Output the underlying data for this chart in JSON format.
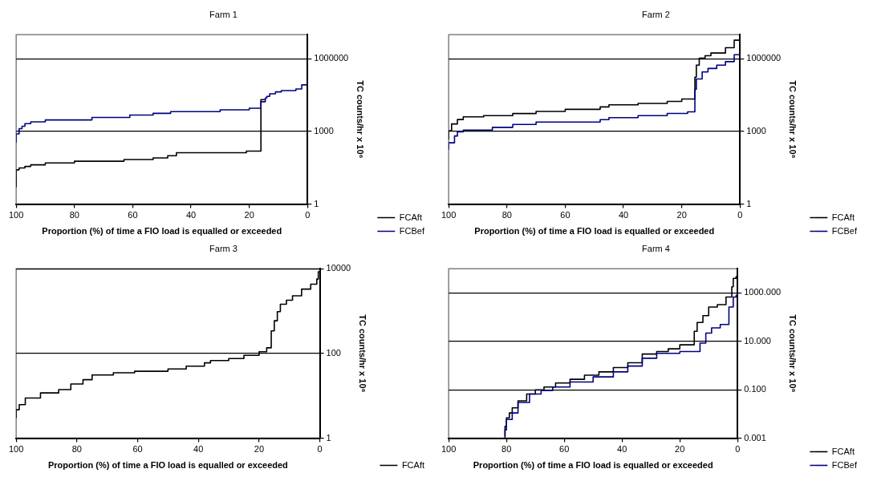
{
  "chart_data": [
    {
      "type": "step",
      "title": "Farm 1",
      "xlabel": "Proportion (%) of time a FIO load is equalled or exceeded",
      "ylabel": "TC counts/hr x 10⁶",
      "log": "y",
      "grid": "y",
      "legend": "bottom right",
      "xlim": [
        100,
        0
      ],
      "xticks": [
        100,
        80,
        60,
        40,
        20,
        0
      ],
      "ylim": [
        1,
        10000000
      ],
      "yticks": [
        1,
        1000,
        1000000
      ],
      "series": [
        {
          "name": "FCAft",
          "color": "#000000",
          "x": [
            100,
            99,
            97,
            95,
            90,
            80,
            63,
            53,
            48,
            45,
            21,
            16,
            14.5
          ],
          "values": [
            5,
            26,
            31,
            36,
            42,
            50,
            59,
            69,
            81,
            100,
            132,
            155,
            20600
          ]
        },
        {
          "name": "FCBef",
          "color": "#000080",
          "x": [
            100,
            99,
            98,
            97,
            95,
            90,
            74,
            61,
            53,
            47,
            30,
            20,
            16,
            14.5,
            14,
            13,
            11,
            9,
            4,
            2,
            0
          ],
          "values": [
            350,
            800,
            1300,
            1650,
            2100,
            2500,
            3000,
            3800,
            4800,
            5600,
            6600,
            7800,
            9100,
            17000,
            24000,
            28000,
            36000,
            43000,
            49000,
            57000,
            84000
          ]
        }
      ]
    },
    {
      "type": "step",
      "title": "Farm 2",
      "xlabel": "Proportion (%) of time a FIO load is equalled or exceeded",
      "ylabel": "TC counts/hr x 10⁶",
      "log": "y",
      "grid": "y",
      "legend": "bottom right",
      "xlim": [
        100,
        0
      ],
      "xticks": [
        100,
        80,
        60,
        40,
        20,
        0
      ],
      "ylim": [
        1,
        10000000
      ],
      "yticks": [
        1,
        1000,
        1000000
      ],
      "series": [
        {
          "name": "FCAft",
          "color": "#000000",
          "x": [
            100,
            99,
            97,
            95,
            88,
            78,
            70,
            60,
            48,
            45,
            35,
            25,
            20,
            15.5,
            15,
            14,
            12,
            10,
            5,
            2,
            0
          ],
          "values": [
            470,
            1070,
            2050,
            3100,
            4000,
            4500,
            5500,
            6700,
            8200,
            10300,
            12600,
            14400,
            17400,
            22000,
            175000,
            550000,
            1070000,
            1350000,
            1740000,
            2900000,
            5900000
          ]
        },
        {
          "name": "FCBef",
          "color": "#000080",
          "x": [
            100,
            98,
            97,
            95,
            85,
            78,
            70,
            48,
            45,
            35,
            25,
            18,
            15.5,
            15,
            13,
            11,
            8,
            5,
            2,
            0
          ],
          "values": [
            175,
            340,
            650,
            970,
            1140,
            1480,
            1940,
            2440,
            3070,
            3730,
            4530,
            5530,
            6500,
            55000,
            148000,
            288000,
            400000,
            550000,
            770000,
            1480000
          ]
        }
      ]
    },
    {
      "type": "step",
      "title": "Farm 3",
      "xlabel": "Proportion (%) of time a FIO load is equalled or exceeded",
      "ylabel": "TC counts/hr x 10⁶",
      "log": "y",
      "grid": "y",
      "legend": "bottom right",
      "xlim": [
        100,
        0
      ],
      "xticks": [
        100,
        80,
        60,
        40,
        20,
        0
      ],
      "ylim": [
        1,
        10000
      ],
      "yticks": [
        1,
        100,
        10000
      ],
      "series": [
        {
          "name": "FCAft",
          "color": "#000000",
          "x": [
            100,
            99,
            97,
            92,
            86,
            82,
            78,
            75,
            68,
            61,
            50,
            44,
            38,
            36,
            30,
            25,
            20,
            17.5,
            16,
            15,
            14,
            13,
            11,
            9,
            6,
            3,
            1,
            0.5,
            0
          ],
          "values": [
            3,
            4.7,
            6.2,
            8.9,
            11.7,
            14,
            19,
            24,
            31,
            35,
            38,
            43,
            50,
            60,
            68,
            76,
            90,
            110,
            136,
            340,
            590,
            970,
            1450,
            1800,
            2300,
            3300,
            4300,
            5700,
            8500
          ]
        }
      ]
    },
    {
      "type": "step",
      "title": "Farm 4",
      "xlabel": "Proportion (%) of time a FIO load is equalled or exceeded",
      "ylabel": "TC counts/hr x 10⁶",
      "log": "y",
      "grid": "y",
      "legend": "bottom right",
      "xlim": [
        100,
        0
      ],
      "xticks": [
        100,
        80,
        60,
        40,
        20,
        0
      ],
      "ylim": [
        0.001,
        10000
      ],
      "yticks": [
        {
          "value": 0.001,
          "label": "0.001"
        },
        {
          "value": 0.1,
          "label": "0.100"
        },
        {
          "value": 10,
          "label": "10.000"
        },
        {
          "value": 1000,
          "label": "1000.000"
        }
      ],
      "series": [
        {
          "name": "FCAft",
          "color": "#000000",
          "x": [
            80.5,
            80,
            79,
            78,
            76,
            73,
            70,
            67,
            63,
            58,
            53,
            48,
            43,
            38,
            33,
            28,
            24,
            20,
            15,
            14,
            12,
            10,
            7,
            4,
            2,
            1.5,
            0.5,
            0
          ],
          "values": [
            0.0012,
            0.0031,
            0.0069,
            0.011,
            0.018,
            0.035,
            0.067,
            0.1,
            0.13,
            0.19,
            0.27,
            0.4,
            0.55,
            0.83,
            1.3,
            3,
            3.8,
            4.9,
            7.2,
            26,
            60,
            115,
            260,
            330,
            680,
            1800,
            4000,
            4700
          ]
        },
        {
          "name": "FCBef",
          "color": "#000080",
          "x": [
            80.5,
            80,
            78,
            76,
            72,
            68,
            64,
            58,
            50,
            43,
            38,
            33,
            28,
            20,
            13,
            11,
            9,
            6,
            3,
            1.5,
            0.5,
            0
          ],
          "values": [
            0.001,
            0.0022,
            0.0059,
            0.011,
            0.03,
            0.067,
            0.093,
            0.13,
            0.21,
            0.34,
            0.55,
            0.95,
            2,
            3.2,
            3.8,
            8.5,
            22,
            36,
            50,
            260,
            680,
            790
          ]
        }
      ]
    }
  ]
}
